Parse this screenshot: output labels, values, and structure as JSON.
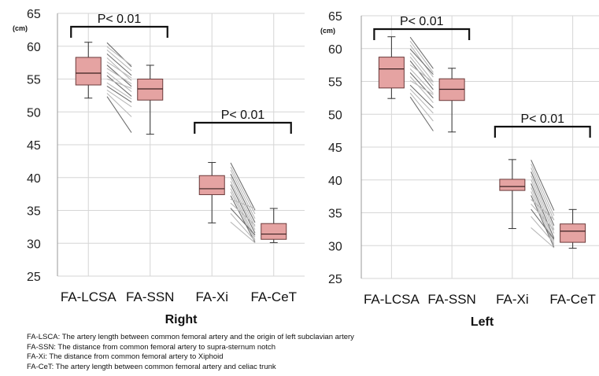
{
  "chart_data": [
    {
      "type": "box",
      "title": "Right",
      "unit": "(cm)",
      "ylim": [
        25,
        65
      ],
      "yticks": [
        25,
        30,
        35,
        40,
        45,
        50,
        55,
        60,
        65
      ],
      "categories": [
        "FA-LCSA",
        "FA-SSN",
        "FA-Xi",
        "FA-CeT"
      ],
      "boxes": [
        {
          "min": 52.1,
          "q1": 54.1,
          "median": 55.9,
          "q3": 58.3,
          "max": 60.6
        },
        {
          "min": 46.6,
          "q1": 51.8,
          "median": 53.5,
          "q3": 55.0,
          "max": 57.1
        },
        {
          "min": 33.1,
          "q1": 37.4,
          "median": 38.3,
          "q3": 40.3,
          "max": 42.3
        },
        {
          "min": 30.1,
          "q1": 30.6,
          "median": 31.4,
          "q3": 33.0,
          "max": 35.3
        }
      ],
      "paired_lines": [
        {
          "from": 0,
          "to": 1,
          "pairs": [
            [
              60.5,
              56.9
            ],
            [
              59.9,
              57.1
            ],
            [
              59.4,
              56.3
            ],
            [
              58.8,
              55.6
            ],
            [
              58.2,
              54.8
            ],
            [
              57.6,
              55.2
            ],
            [
              57.1,
              53.9
            ],
            [
              56.6,
              54.3
            ],
            [
              56.0,
              53.1
            ],
            [
              55.5,
              52.4
            ],
            [
              55.0,
              53.6
            ],
            [
              54.4,
              52.0
            ],
            [
              53.9,
              51.5
            ],
            [
              53.3,
              50.8
            ],
            [
              52.8,
              49.3
            ],
            [
              52.3,
              46.9
            ]
          ]
        },
        {
          "from": 2,
          "to": 3,
          "pairs": [
            [
              42.2,
              35.1
            ],
            [
              41.6,
              34.5
            ],
            [
              41.1,
              33.8
            ],
            [
              40.5,
              33.2
            ],
            [
              40.0,
              32.6
            ],
            [
              39.4,
              32.1
            ],
            [
              38.9,
              31.6
            ],
            [
              38.3,
              31.0
            ],
            [
              37.8,
              30.6
            ],
            [
              37.2,
              30.2
            ],
            [
              36.7,
              35.3
            ],
            [
              36.1,
              32.8
            ],
            [
              35.3,
              31.3
            ],
            [
              34.5,
              30.4
            ],
            [
              33.2,
              30.1
            ]
          ]
        }
      ],
      "annotations": [
        {
          "text": "P< 0.01",
          "from": 0,
          "to": 1
        },
        {
          "text": "P< 0.01",
          "from": 2,
          "to": 3
        }
      ]
    },
    {
      "type": "box",
      "title": "Left",
      "unit": "(cm)",
      "ylim": [
        25,
        65
      ],
      "yticks": [
        25,
        30,
        35,
        40,
        45,
        50,
        55,
        60,
        65
      ],
      "categories": [
        "FA-LCSA",
        "FA-SSN",
        "FA-Xi",
        "FA-CeT"
      ],
      "boxes": [
        {
          "min": 52.4,
          "q1": 54.0,
          "median": 56.9,
          "q3": 58.7,
          "max": 61.8
        },
        {
          "min": 47.3,
          "q1": 52.1,
          "median": 53.8,
          "q3": 55.4,
          "max": 57.0
        },
        {
          "min": 32.6,
          "q1": 38.4,
          "median": 39.0,
          "q3": 40.1,
          "max": 43.1
        },
        {
          "min": 29.6,
          "q1": 30.5,
          "median": 32.2,
          "q3": 33.3,
          "max": 35.5
        }
      ],
      "paired_lines": [
        {
          "from": 0,
          "to": 1,
          "pairs": [
            [
              61.7,
              57.0
            ],
            [
              61.1,
              56.4
            ],
            [
              60.5,
              55.7
            ],
            [
              59.9,
              56.1
            ],
            [
              59.3,
              55.0
            ],
            [
              58.7,
              54.4
            ],
            [
              58.1,
              53.8
            ],
            [
              57.5,
              54.9
            ],
            [
              56.9,
              53.2
            ],
            [
              56.3,
              52.5
            ],
            [
              55.7,
              51.8
            ],
            [
              55.1,
              53.0
            ],
            [
              54.4,
              51.0
            ],
            [
              53.8,
              50.2
            ],
            [
              53.2,
              49.0
            ],
            [
              52.6,
              47.5
            ]
          ]
        },
        {
          "from": 2,
          "to": 3,
          "pairs": [
            [
              43.0,
              35.4
            ],
            [
              42.4,
              34.6
            ],
            [
              41.8,
              33.9
            ],
            [
              41.2,
              33.1
            ],
            [
              40.6,
              32.5
            ],
            [
              40.0,
              31.9
            ],
            [
              39.4,
              31.2
            ],
            [
              38.8,
              30.7
            ],
            [
              38.2,
              30.2
            ],
            [
              37.6,
              29.8
            ],
            [
              37.0,
              34.0
            ],
            [
              36.3,
              32.4
            ],
            [
              35.5,
              31.0
            ],
            [
              34.4,
              30.4
            ],
            [
              32.7,
              29.7
            ]
          ]
        }
      ],
      "annotations": [
        {
          "text": "P< 0.01",
          "from": 0,
          "to": 1
        },
        {
          "text": "P< 0.01",
          "from": 2,
          "to": 3
        }
      ]
    }
  ],
  "legend_lines": [
    "FA-LSCA: The artery length between common femoral artery and the origin of left subclavian artery",
    "FA-SSN: The distance from common femoral artery to supra-sternum notch",
    "FA-Xi: The distance from common femoral artery to Xiphoid",
    "FA-CeT: The artery length between common femoral artery and celiac trunk"
  ],
  "colors": {
    "box_fill": "#e5a3a2",
    "box_stroke": "#6b3a3a",
    "grid": "#d6d6d6",
    "line_dark": "#6f6f6f",
    "line_light": "#b9b9b9"
  }
}
